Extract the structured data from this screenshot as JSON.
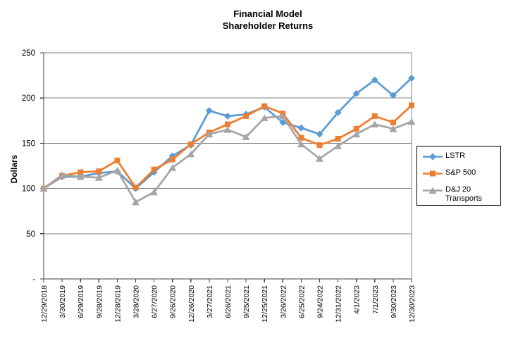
{
  "title": {
    "line1": "Financial Model",
    "line2": "Shareholder Returns"
  },
  "y_axis": {
    "label": "Dollars",
    "ticks": [
      {
        "label": "250",
        "value": 250
      },
      {
        "label": "200",
        "value": 200
      },
      {
        "label": "150",
        "value": 150
      },
      {
        "label": "100",
        "value": 100
      },
      {
        "label": "50",
        "value": 50
      },
      {
        "label": "-",
        "value": 0
      }
    ]
  },
  "theme": {
    "background": "#FFFFFF",
    "axis_color": "#404040",
    "gridline_color": "#808080",
    "text_color": "#000000",
    "legend_border": "#000000"
  },
  "chart_data": {
    "type": "line",
    "title": "Financial Model Shareholder Returns",
    "xlabel": "",
    "ylabel": "Dollars",
    "ylim": [
      0,
      250
    ],
    "ytick_interval": 50,
    "grid": "horizontal",
    "legend_position": "right",
    "categories": [
      "12/29/2018",
      "3/30/2019",
      "6/29/2019",
      "9/28/2019",
      "12/28/2019",
      "3/28/2020",
      "6/27/2020",
      "9/26/2020",
      "12/26/2020",
      "3/27/2021",
      "6/26/2021",
      "9/25/2021",
      "12/25/2021",
      "3/26/2022",
      "6/25/2022",
      "9/24/2022",
      "12/31/2022",
      "4/1/2023",
      "7/1/2023",
      "9/30/2023",
      "12/30/2023"
    ],
    "series": [
      {
        "name": "LSTR",
        "color": "#5B9BD5",
        "marker": "diamond",
        "values": [
          100,
          113,
          113,
          117,
          119,
          100,
          118,
          136,
          148,
          186,
          180,
          182,
          190,
          173,
          167,
          160,
          184,
          205,
          220,
          203,
          222
        ]
      },
      {
        "name": "S&P 500",
        "color": "#ED7D31",
        "marker": "square",
        "values": [
          100,
          114,
          118,
          119,
          131,
          101,
          121,
          132,
          149,
          162,
          171,
          180,
          191,
          183,
          156,
          148,
          155,
          166,
          180,
          173,
          192
        ]
      },
      {
        "name": "D&J 20 Transports",
        "color": "#A5A5A5",
        "marker": "triangle",
        "values": [
          100,
          115,
          113,
          112,
          120,
          85,
          96,
          123,
          138,
          160,
          165,
          157,
          178,
          180,
          149,
          133,
          147,
          160,
          171,
          166,
          174
        ]
      }
    ]
  }
}
